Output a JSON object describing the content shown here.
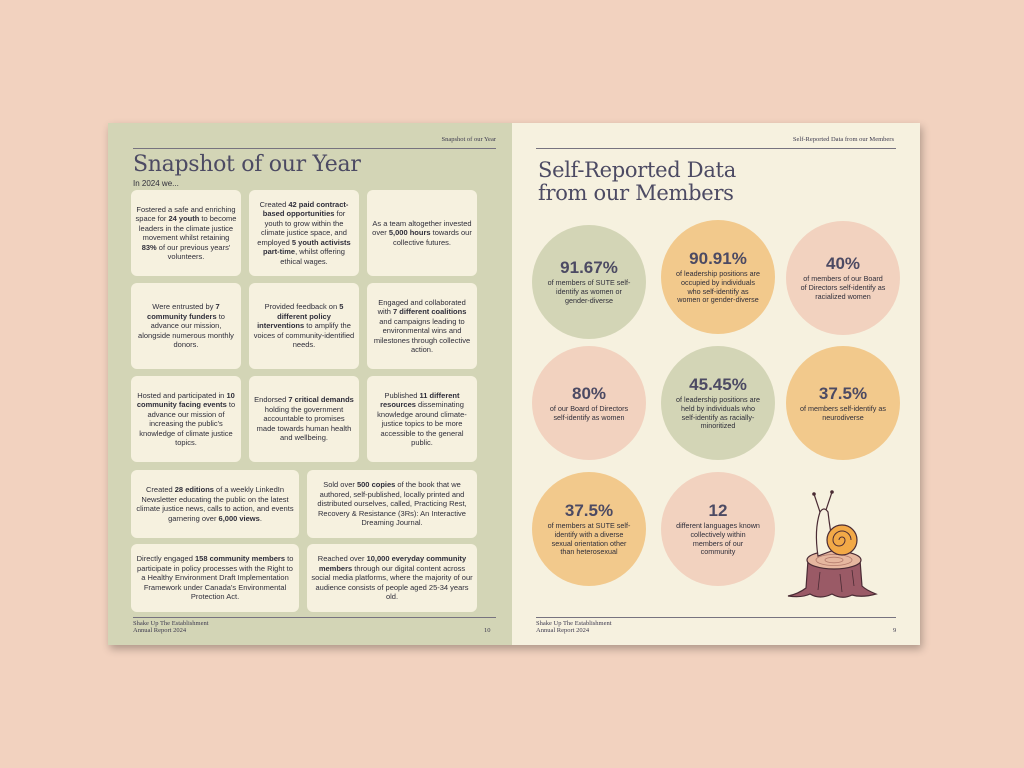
{
  "left_page": {
    "running_head": "Snapshot of our Year",
    "title": "Snapshot of our Year",
    "intro": "In 2024 we...",
    "cards": [
      {
        "segments": [
          {
            "t": "Fostered a safe and enriching space for "
          },
          {
            "t": "24 youth",
            "b": true
          },
          {
            "t": " to become leaders in the climate justice movement whilst retaining "
          },
          {
            "t": "83%",
            "b": true
          },
          {
            "t": " of our previous years' volunteers."
          }
        ]
      },
      {
        "segments": [
          {
            "t": "Created "
          },
          {
            "t": "42 paid contract-based opportunities",
            "b": true
          },
          {
            "t": " for youth to grow within the climate justice space, and employed "
          },
          {
            "t": "5 youth activists part-time",
            "b": true
          },
          {
            "t": ", whilst offering ethical wages."
          }
        ]
      },
      {
        "segments": [
          {
            "t": "As a team altogether invested over "
          },
          {
            "t": "5,000 hours",
            "b": true
          },
          {
            "t": " towards our collective futures."
          }
        ]
      },
      {
        "segments": [
          {
            "t": "Were entrusted by "
          },
          {
            "t": "7 community funders",
            "b": true
          },
          {
            "t": " to advance our mission, alongside numerous monthly donors."
          }
        ]
      },
      {
        "segments": [
          {
            "t": "Provided feedback on "
          },
          {
            "t": "5 different policy interventions",
            "b": true
          },
          {
            "t": " to amplify the voices of community-identified needs."
          }
        ]
      },
      {
        "segments": [
          {
            "t": "Engaged and collaborated with "
          },
          {
            "t": "7 different coalitions",
            "b": true
          },
          {
            "t": " and campaigns leading to environmental wins and milestones through collective action."
          }
        ]
      },
      {
        "segments": [
          {
            "t": "Hosted and participated in "
          },
          {
            "t": "10 community facing events",
            "b": true
          },
          {
            "t": " to advance our mission of increasing the public's knowledge of climate justice topics."
          }
        ]
      },
      {
        "segments": [
          {
            "t": "Endorsed "
          },
          {
            "t": "7 critical demands",
            "b": true
          },
          {
            "t": " holding the government accountable to promises made towards human health and wellbeing."
          }
        ]
      },
      {
        "segments": [
          {
            "t": "Published "
          },
          {
            "t": "11 different resources",
            "b": true
          },
          {
            "t": " disseminating knowledge around climate-justice topics to be more accessible to the general public."
          }
        ]
      },
      {
        "segments": [
          {
            "t": "Created "
          },
          {
            "t": "28 editions",
            "b": true
          },
          {
            "t": " of a weekly LinkedIn Newsletter educating the public on the latest climate justice news, calls to action, and events garnering over "
          },
          {
            "t": "6,000 views",
            "b": true
          },
          {
            "t": "."
          }
        ]
      },
      {
        "segments": [
          {
            "t": "Sold over "
          },
          {
            "t": "500 copies",
            "b": true
          },
          {
            "t": " of the book that we authored, self-published, locally printed and distributed ourselves, called, Practicing Rest, Recovery & Resistance (3Rs): An Interactive Dreaming Journal."
          }
        ]
      },
      {
        "segments": [
          {
            "t": "Directly engaged "
          },
          {
            "t": "158 community members",
            "b": true
          },
          {
            "t": " to participate in policy processes with the Right to a Healthy Environment Draft Implementation Framework under Canada's Environmental Protection Act."
          }
        ]
      },
      {
        "segments": [
          {
            "t": "Reached over "
          },
          {
            "t": "10,000 everyday community members",
            "b": true
          },
          {
            "t": " through our digital content across social media platforms, where the majority of our audience consists of people aged 25-34 years old."
          }
        ]
      }
    ],
    "footer_line1": "Shake Up The Establishment",
    "footer_line2": "Annual Report 2024",
    "page_number": "10"
  },
  "right_page": {
    "running_head": "Self-Reported Data from our Members",
    "title_line1": "Self-Reported Data",
    "title_line2": "from our Members",
    "stats": [
      {
        "value": "91.67%",
        "desc": "of members of SUTE self-identify as women or gender-diverse",
        "color": "green"
      },
      {
        "value": "90.91%",
        "desc": "of leadership positions are occupied by individuals who self-identify as women or gender-diverse",
        "color": "orange"
      },
      {
        "value": "40%",
        "desc": "of members of our Board of Directors self-identify as racialized women",
        "color": "pink"
      },
      {
        "value": "80%",
        "desc": "of our Board of Directors self-identify as women",
        "color": "pink"
      },
      {
        "value": "45.45%",
        "desc": "of leadership positions are held by individuals who self-identify as racially-minoritized",
        "color": "green"
      },
      {
        "value": "37.5%",
        "desc": "of members self-identify as neurodiverse",
        "color": "orange"
      },
      {
        "value": "37.5%",
        "desc": "of members at SUTE self-identify with a diverse sexual orientation other than heterosexual",
        "color": "orange"
      },
      {
        "value": "12",
        "desc": "different languages known collectively within members of our community",
        "color": "pink"
      }
    ],
    "footer_line1": "Shake Up The Establishment",
    "footer_line2": "Annual Report 2024",
    "page_number": "9"
  },
  "colors": {
    "background": "#f2d2bf",
    "left_page": "#d3d5b6",
    "right_page": "#f6f1df",
    "card": "#f6f1df",
    "title": "#4c4a63",
    "green_circle": "#d3d5b6",
    "pink_circle": "#f2d2bf",
    "orange_circle": "#f2c98c"
  },
  "illustration": "snail-on-tree-stump"
}
